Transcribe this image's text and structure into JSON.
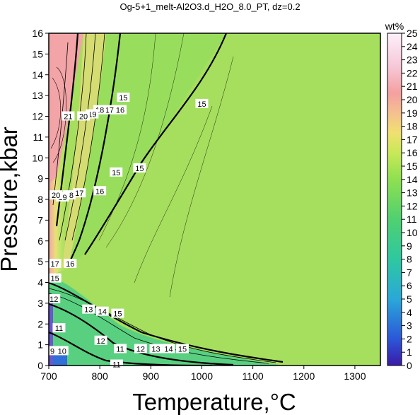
{
  "chart_data": {
    "type": "heatmap",
    "title": "Og-5+1_melt-Al2O3.d_H2O_8.0_PT, dz=0.2",
    "xlabel": "Temperature,°C",
    "ylabel": "Pressure,kbar",
    "xlim": [
      700,
      1350
    ],
    "ylim": [
      0,
      16
    ],
    "x_ticks": [
      "700",
      "800",
      "900",
      "1000",
      "1100",
      "1200",
      "1300"
    ],
    "y_ticks": [
      "0",
      "1",
      "2",
      "3",
      "4",
      "5",
      "6",
      "7",
      "8",
      "9",
      "10",
      "11",
      "12",
      "13",
      "14",
      "15",
      "16"
    ],
    "colorbar": {
      "label": "wt%",
      "range": [
        0,
        25
      ],
      "ticks": [
        "0",
        "1",
        "2",
        "3",
        "4",
        "5",
        "6",
        "7",
        "8",
        "9",
        "10",
        "11",
        "12",
        "13",
        "14",
        "15",
        "16",
        "17",
        "18",
        "19",
        "20",
        "21",
        "22",
        "23",
        "24",
        "25"
      ]
    },
    "contour_labels": [
      {
        "text": "15",
        "x": 1000,
        "y": 12.6
      },
      {
        "text": "15",
        "x": 878,
        "y": 9.5
      },
      {
        "text": "15",
        "x": 832,
        "y": 9.3
      },
      {
        "text": "15",
        "x": 846,
        "y": 12.9
      },
      {
        "text": "16",
        "x": 800,
        "y": 8.4
      },
      {
        "text": "16",
        "x": 840,
        "y": 12.3
      },
      {
        "text": "17",
        "x": 819,
        "y": 12.3
      },
      {
        "text": "18",
        "x": 800,
        "y": 12.3
      },
      {
        "text": "19",
        "x": 785,
        "y": 12.1
      },
      {
        "text": "20",
        "x": 768,
        "y": 12.0
      },
      {
        "text": "21",
        "x": 738,
        "y": 12.0
      },
      {
        "text": "17",
        "x": 760,
        "y": 8.3
      },
      {
        "text": "18",
        "x": 740,
        "y": 8.2
      },
      {
        "text": "19",
        "x": 727,
        "y": 8.1
      },
      {
        "text": "20",
        "x": 714,
        "y": 8.2
      },
      {
        "text": "16",
        "x": 742,
        "y": 4.9
      },
      {
        "text": "17",
        "x": 712,
        "y": 4.9
      },
      {
        "text": "15",
        "x": 712,
        "y": 4.2
      },
      {
        "text": "12",
        "x": 710,
        "y": 3.2
      },
      {
        "text": "13",
        "x": 778,
        "y": 2.7
      },
      {
        "text": "14",
        "x": 805,
        "y": 2.6
      },
      {
        "text": "15",
        "x": 835,
        "y": 2.5
      },
      {
        "text": "11",
        "x": 720,
        "y": 1.8
      },
      {
        "text": "12",
        "x": 802,
        "y": 1.2
      },
      {
        "text": "11",
        "x": 840,
        "y": 0.8
      },
      {
        "text": "12",
        "x": 880,
        "y": 0.8
      },
      {
        "text": "13",
        "x": 910,
        "y": 0.8
      },
      {
        "text": "14",
        "x": 935,
        "y": 0.8
      },
      {
        "text": "15",
        "x": 962,
        "y": 0.8
      },
      {
        "text": "11",
        "x": 833,
        "y": 0.05
      },
      {
        "text": "9",
        "x": 707,
        "y": 0.7
      },
      {
        "text": "10",
        "x": 726,
        "y": 0.7
      }
    ]
  },
  "colors": {
    "background_field": "#a8e060",
    "axes": "#000000"
  }
}
